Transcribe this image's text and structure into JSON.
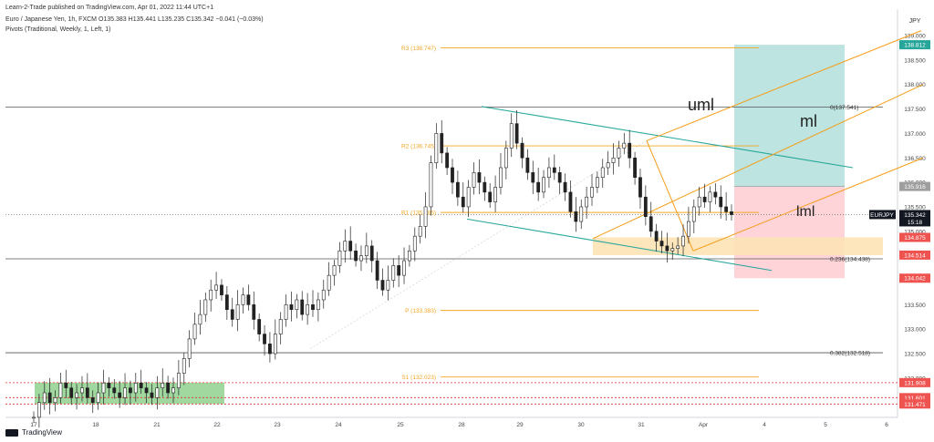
{
  "header": {
    "publisher": "Learn-2-Trade published on TradingView.com, Apr 01, 2022 11:44 UTC+1",
    "symbol_line": "Euro / Japanese Yen, 1h, FXCM  O135.383  H135.441  L135.235  C135.342  −0.041 (−0.03%)",
    "indicator": "Pivots (Traditional, Weekly, 1, Left, 1)"
  },
  "footer": {
    "logo_text": "TradingView"
  },
  "currency_label": "JPY",
  "colors": {
    "pivot": "#f5a623",
    "fib": "#555555",
    "teal": "#26a69a",
    "orange": "#f59e1a",
    "candle": "#222222",
    "down": "#ef5350",
    "dotted_red": "#e03030",
    "green_box": "#8fd18f",
    "tp_box": "#b2dfdb",
    "sl_box": "#ffcdd2",
    "zone_box": "#fde2b5"
  },
  "chart_data": {
    "type": "line",
    "title": "",
    "xlabel": "",
    "ylabel": "",
    "ylim": [
      131.3,
      139.3
    ],
    "x_ticks": [
      "17",
      "18",
      "21",
      "22",
      "23",
      "24",
      "25",
      "28",
      "29",
      "30",
      "31",
      "Apr",
      "4",
      "5",
      "6"
    ],
    "y_ticks": [
      132.0,
      132.5,
      133.0,
      133.5,
      134.0,
      134.5,
      135.0,
      135.5,
      136.0,
      136.5,
      137.0,
      137.5,
      138.0,
      138.5,
      139.0
    ],
    "pivot_levels": [
      {
        "label": "R3 (138.747)",
        "value": 138.747
      },
      {
        "label": "R2 (136.745)",
        "value": 136.745
      },
      {
        "label": "R1 (135.385)",
        "value": 135.385
      },
      {
        "label": "P (133.383)",
        "value": 133.383
      },
      {
        "label": "S1 (132.023)",
        "value": 132.023
      }
    ],
    "fib_levels": [
      {
        "label": "0(137.541)",
        "value": 137.541
      },
      {
        "label": "0.236(134.438)",
        "value": 134.438
      },
      {
        "label": "0.382(132.518)",
        "value": 132.518
      }
    ],
    "price_tags": [
      {
        "label": "138.812",
        "value": 138.812,
        "color": "#26a69a"
      },
      {
        "label": "135.916",
        "value": 135.916,
        "color": "#9e9e9e"
      },
      {
        "label": "EURJPY",
        "value": 135.342,
        "color": "#131722"
      },
      {
        "label": "135.342",
        "value": 135.342,
        "color": "#131722"
      },
      {
        "label": "15:18",
        "value": 135.342,
        "color": "#131722"
      },
      {
        "label": "134.875",
        "value": 134.875,
        "color": "#ef5350"
      },
      {
        "label": "134.514",
        "value": 134.514,
        "color": "#ef5350"
      },
      {
        "label": "134.042",
        "value": 134.042,
        "color": "#ef5350"
      },
      {
        "label": "131.908",
        "value": 131.908,
        "color": "#ef5350"
      },
      {
        "label": "131.601",
        "value": 131.601,
        "color": "#ef5350"
      },
      {
        "label": "131.471",
        "value": 131.471,
        "color": "#ef5350"
      }
    ],
    "annotations": [
      {
        "text": "uml"
      },
      {
        "text": "ml"
      },
      {
        "text": "lml"
      }
    ],
    "series": [
      {
        "values": [
          131.2,
          131.5,
          131.7,
          131.5,
          131.6,
          131.9,
          131.8,
          131.6,
          131.7,
          131.8,
          131.6,
          131.5,
          131.7,
          131.9,
          131.8,
          131.7,
          131.6,
          131.8,
          131.7,
          131.9,
          131.8,
          131.7,
          131.6,
          131.8,
          131.9,
          131.7,
          131.8,
          132.1,
          132.4,
          132.8,
          133.1,
          133.3,
          133.6,
          133.8,
          133.9,
          133.7,
          133.4,
          133.2,
          133.5,
          133.7,
          133.5,
          133.2,
          132.9,
          132.7,
          132.5,
          132.9,
          133.2,
          133.5,
          133.4,
          133.6,
          133.3,
          133.5,
          133.4,
          133.6,
          133.8,
          134.1,
          134.3,
          134.6,
          134.8,
          134.6,
          134.4,
          134.5,
          134.7,
          134.4,
          134.0,
          133.8,
          134.0,
          134.3,
          134.1,
          134.4,
          134.6,
          134.9,
          135.1,
          135.5,
          136.4,
          137.0,
          136.6,
          136.3,
          136.0,
          135.7,
          135.5,
          135.9,
          136.2,
          136.0,
          135.8,
          135.6,
          135.9,
          136.3,
          136.7,
          137.2,
          136.8,
          136.5,
          136.2,
          136.0,
          135.8,
          136.1,
          136.3,
          136.2,
          136.0,
          135.8,
          135.4,
          135.2,
          135.5,
          135.7,
          135.9,
          136.1,
          136.3,
          136.4,
          136.5,
          136.7,
          136.8,
          136.5,
          136.1,
          135.7,
          135.3,
          135.0,
          134.8,
          134.7,
          134.6,
          134.65,
          134.7,
          134.9,
          135.2,
          135.5,
          135.7,
          135.6,
          135.8,
          135.7,
          135.5,
          135.4,
          135.34
        ]
      }
    ]
  }
}
